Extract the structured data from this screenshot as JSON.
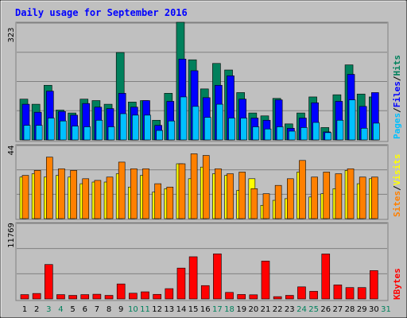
{
  "title": "Daily usage for September 2016",
  "colors": {
    "background": "#c0c0c0",
    "frame": "#a0a0a0",
    "title": "#0000ff",
    "hits": "#00805c",
    "files": "#0000ff",
    "pages": "#00c0ff",
    "visits": "#ffff00",
    "sites": "#ff8000",
    "kbytes": "#ff0000",
    "weekend_day": "#00805c",
    "weekday": "#000000"
  },
  "labels": {
    "upper_max": "323",
    "middle_max": "44",
    "lower_max": "11769",
    "pages": "Pages",
    "files": "Files",
    "hits": "Hits",
    "sites": "Sites",
    "visits": "Visits",
    "kbytes": "KBytes",
    "slash": "/"
  },
  "chart_data": [
    {
      "type": "bar",
      "title": "Daily usage for September 2016",
      "categories": [
        "1",
        "2",
        "3",
        "4",
        "5",
        "6",
        "7",
        "8",
        "9",
        "10",
        "11",
        "12",
        "13",
        "14",
        "15",
        "16",
        "17",
        "18",
        "19",
        "20",
        "21",
        "22",
        "23",
        "24",
        "25",
        "26",
        "27",
        "28",
        "29",
        "30",
        "31"
      ],
      "weekend": [
        3,
        4,
        10,
        11,
        17,
        18,
        24,
        25,
        31
      ],
      "ylim": [
        0,
        323
      ],
      "series": [
        {
          "name": "Hits",
          "values": [
            112,
            98,
            150,
            82,
            74,
            112,
            108,
            98,
            240,
            104,
            108,
            54,
            128,
            323,
            220,
            140,
            210,
            192,
            130,
            74,
            66,
            114,
            44,
            74,
            118,
            34,
            124,
            206,
            126,
            118,
            0
          ]
        },
        {
          "name": "Files",
          "values": [
            98,
            76,
            134,
            78,
            68,
            100,
            90,
            86,
            128,
            90,
            108,
            40,
            106,
            222,
            190,
            116,
            150,
            176,
            112,
            60,
            54,
            110,
            32,
            60,
            102,
            22,
            106,
            180,
            92,
            130,
            0
          ]
        },
        {
          "name": "Pages",
          "values": [
            40,
            40,
            60,
            52,
            38,
            36,
            54,
            36,
            72,
            68,
            68,
            26,
            52,
            118,
            92,
            62,
            98,
            60,
            60,
            36,
            30,
            36,
            24,
            34,
            48,
            20,
            54,
            110,
            32,
            46,
            0
          ]
        }
      ]
    },
    {
      "type": "bar",
      "categories": [
        "1",
        "2",
        "3",
        "4",
        "5",
        "6",
        "7",
        "8",
        "9",
        "10",
        "11",
        "12",
        "13",
        "14",
        "15",
        "16",
        "17",
        "18",
        "19",
        "20",
        "21",
        "22",
        "23",
        "24",
        "25",
        "26",
        "27",
        "28",
        "29",
        "30",
        "31"
      ],
      "ylim": [
        0,
        44
      ],
      "series": [
        {
          "name": "Visits",
          "values": [
            25,
            27,
            25,
            26,
            25,
            21,
            22,
            22,
            27,
            19,
            26,
            16,
            18,
            33,
            24,
            31,
            27,
            26,
            17,
            24,
            8,
            11,
            12,
            28,
            13,
            15,
            18,
            29,
            21,
            24,
            0
          ]
        },
        {
          "name": "Sites",
          "values": [
            26,
            29,
            37,
            30,
            29,
            24,
            23,
            25,
            34,
            30,
            30,
            21,
            19,
            33,
            39,
            38,
            30,
            27,
            28,
            18,
            15,
            20,
            24,
            35,
            25,
            28,
            27,
            30,
            25,
            25,
            0
          ]
        }
      ]
    },
    {
      "type": "bar",
      "categories": [
        "1",
        "2",
        "3",
        "4",
        "5",
        "6",
        "7",
        "8",
        "9",
        "10",
        "11",
        "12",
        "13",
        "14",
        "15",
        "16",
        "17",
        "18",
        "19",
        "20",
        "21",
        "22",
        "23",
        "24",
        "25",
        "26",
        "27",
        "28",
        "29",
        "30",
        "31"
      ],
      "ylim": [
        0,
        11769
      ],
      "series": [
        {
          "name": "KBytes",
          "values": [
            680,
            860,
            5420,
            680,
            560,
            680,
            740,
            560,
            2360,
            900,
            1120,
            720,
            1620,
            4860,
            6640,
            2100,
            7100,
            1030,
            700,
            650,
            5960,
            360,
            560,
            1900,
            1200,
            7080,
            2210,
            1790,
            1790,
            4460,
            0
          ]
        }
      ]
    }
  ]
}
